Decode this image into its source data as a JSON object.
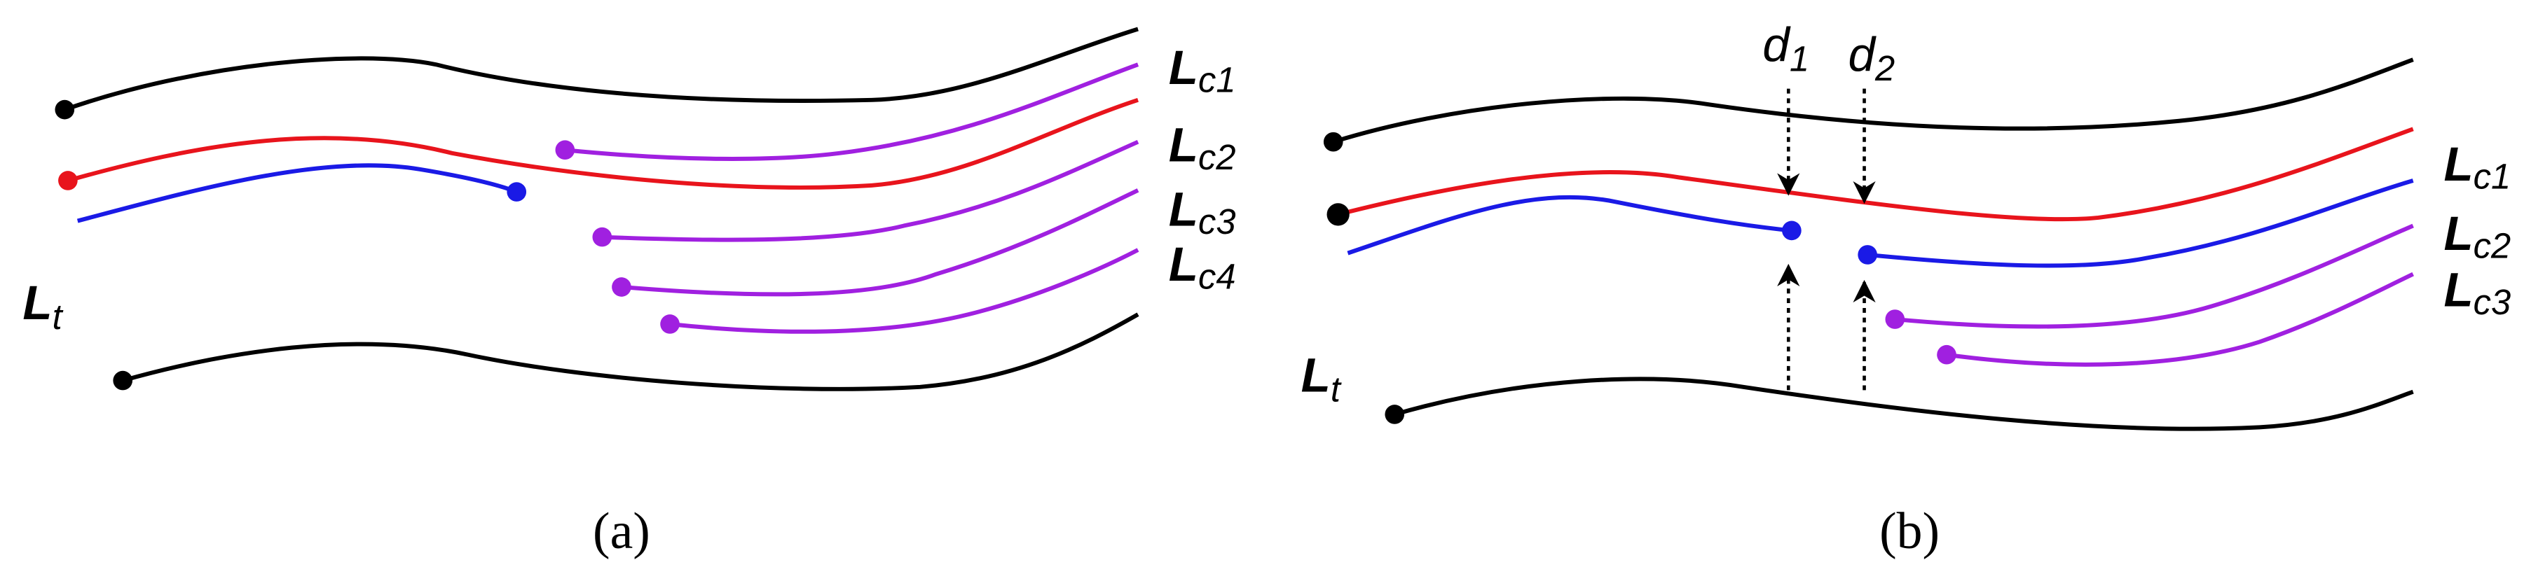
{
  "panel_a": {
    "caption": "(a)",
    "labels": [
      {
        "main": "L",
        "sub": "c1"
      },
      {
        "main": "L",
        "sub": "c2"
      },
      {
        "main": "L",
        "sub": "c3"
      },
      {
        "main": "L",
        "sub": "c4"
      },
      {
        "main": "L",
        "sub": "t"
      }
    ]
  },
  "panel_b": {
    "caption": "(b)",
    "distances": [
      {
        "main": "d",
        "sub": "1"
      },
      {
        "main": "d",
        "sub": "2"
      }
    ],
    "labels": [
      {
        "main": "L",
        "sub": "c1"
      },
      {
        "main": "L",
        "sub": "c2"
      },
      {
        "main": "L",
        "sub": "c3"
      },
      {
        "main": "L",
        "sub": "t"
      }
    ]
  }
}
